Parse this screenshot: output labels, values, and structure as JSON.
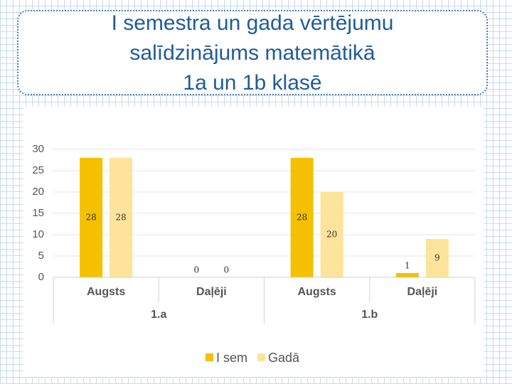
{
  "chart_data": {
    "type": "bar",
    "title": [
      "I semestra un gada vērtējumu",
      "salīdzinājums matemātikā",
      "1a un 1b klasē"
    ],
    "categories": [
      "Augsts",
      "Daļēji",
      "Augsts",
      "Daļēji"
    ],
    "category_groups": [
      "1.a",
      "1.b"
    ],
    "series": [
      {
        "name": "I sem",
        "color": "#f5c000",
        "values": [
          28,
          0,
          28,
          1
        ]
      },
      {
        "name": "Gadā",
        "color": "#fde49a",
        "values": [
          28,
          0,
          20,
          9
        ]
      }
    ],
    "ylim": [
      0,
      30
    ],
    "yticks": [
      0,
      5,
      10,
      15,
      20,
      25,
      30
    ],
    "grid": true,
    "legend": "bottom"
  }
}
